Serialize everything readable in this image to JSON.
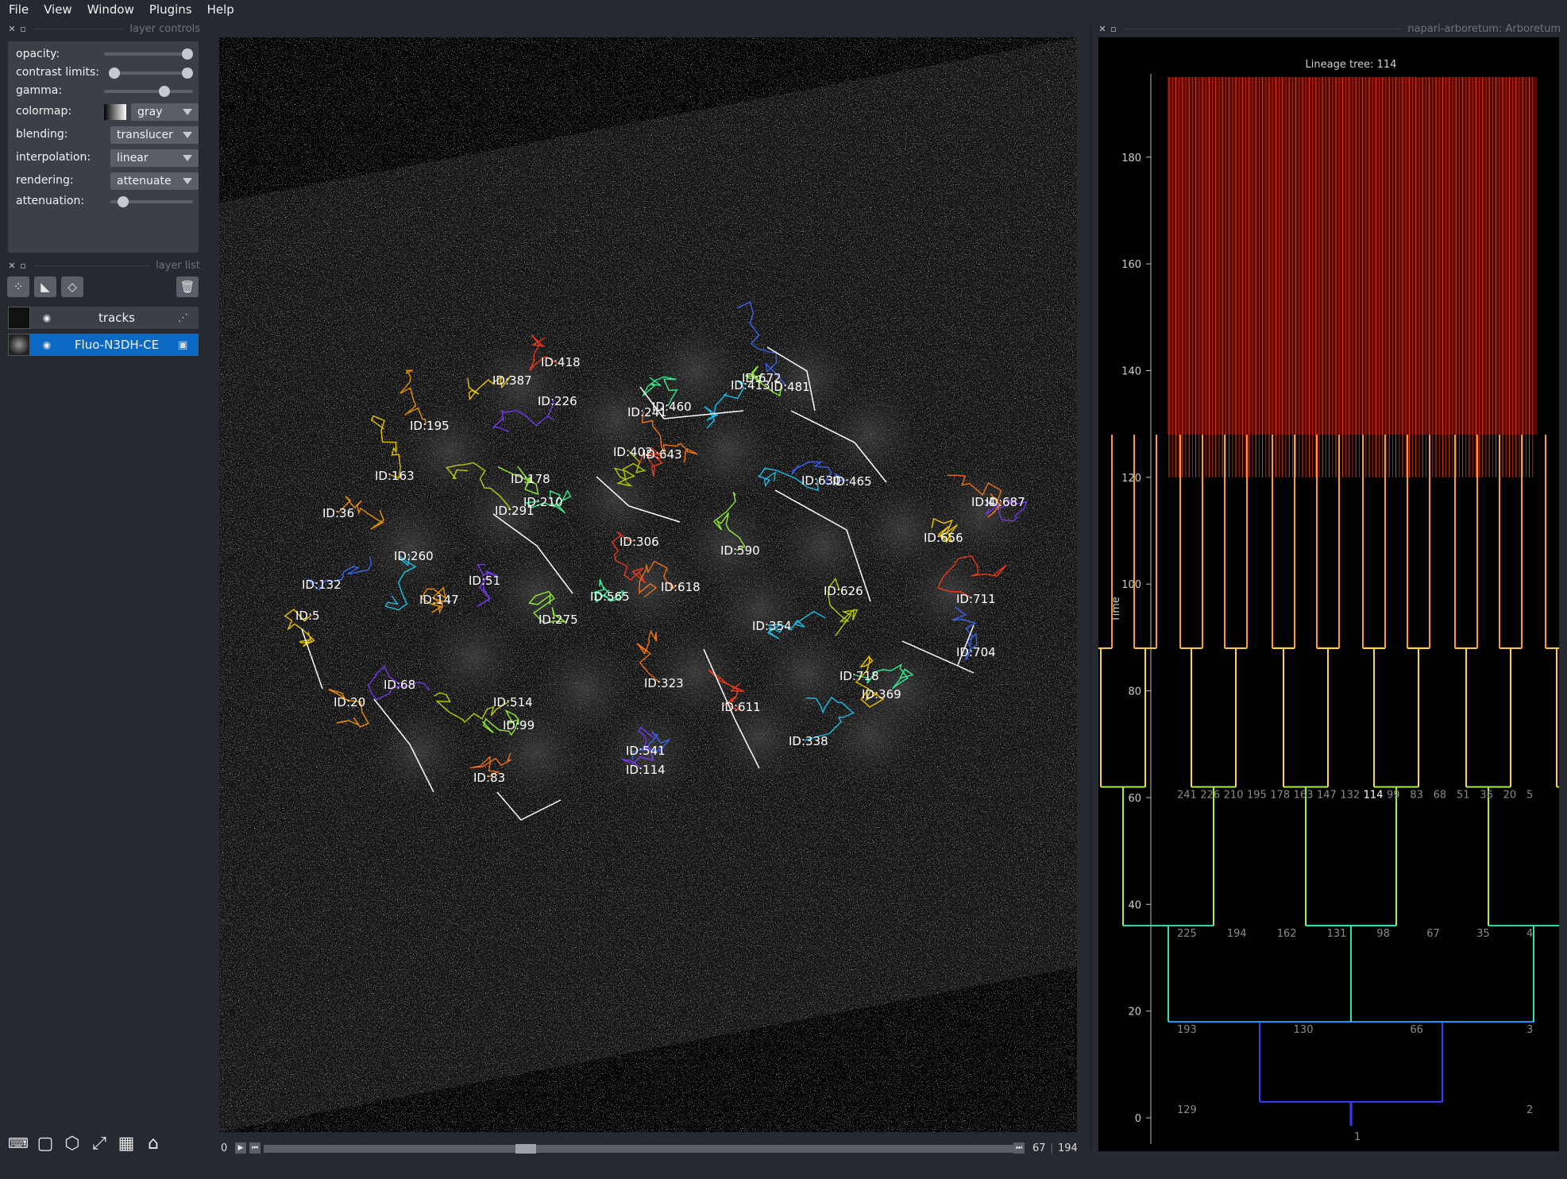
{
  "menu": [
    "File",
    "View",
    "Window",
    "Plugins",
    "Help"
  ],
  "layer_controls": {
    "header": "layer controls",
    "opacity_label": "opacity:",
    "opacity_value": 1.0,
    "contrast_label": "contrast limits:",
    "contrast_values": [
      0.0,
      1.0
    ],
    "gamma_label": "gamma:",
    "gamma_value": 0.7,
    "colormap_label": "colormap:",
    "colormap_value": "gray",
    "blending_label": "blending:",
    "blending_value": "translucer",
    "interpolation_label": "interpolation:",
    "interpolation_value": "linear",
    "rendering_label": "rendering:",
    "rendering_value": "attenuate",
    "attenuation_label": "attenuation:",
    "attenuation_value": 0.1
  },
  "layer_list": {
    "header": "layer list",
    "layers": [
      {
        "name": "tracks",
        "selected": false
      },
      {
        "name": "Fluo-N3DH-CE",
        "selected": true
      }
    ]
  },
  "frame_slider": {
    "start": "0",
    "current": "67",
    "total": "194",
    "position": 0.345
  },
  "tracks": {
    "labels": [
      {
        "text": "ID:418",
        "c": "#ffffff"
      },
      {
        "text": "ID:387",
        "c": "#ffffff"
      },
      {
        "text": "ID:672",
        "c": "#ffffff"
      },
      {
        "text": "ID:413",
        "c": "#ffffff"
      },
      {
        "text": "ID:481",
        "c": "#ffffff"
      },
      {
        "text": "ID:226",
        "c": "#ffffff"
      },
      {
        "text": "ID:241",
        "c": "#ffffff"
      },
      {
        "text": "ID:460",
        "c": "#ffffff"
      },
      {
        "text": "ID:195",
        "c": "#ffffff"
      },
      {
        "text": "ID:402",
        "c": "#ffffff"
      },
      {
        "text": "ID:643",
        "c": "#ffffff"
      },
      {
        "text": "ID:163",
        "c": "#ffffff"
      },
      {
        "text": "ID:178",
        "c": "#ffffff"
      },
      {
        "text": "ID:630",
        "c": "#ffffff"
      },
      {
        "text": "ID:465",
        "c": "#ffffff"
      },
      {
        "text": "ID:4",
        "c": "#ffffff"
      },
      {
        "text": "ID:687",
        "c": "#ffffff"
      },
      {
        "text": "ID:210",
        "c": "#ffffff"
      },
      {
        "text": "ID:36",
        "c": "#ffffff"
      },
      {
        "text": "ID:291",
        "c": "#ffffff"
      },
      {
        "text": "ID:306",
        "c": "#ffffff"
      },
      {
        "text": "ID:656",
        "c": "#ffffff"
      },
      {
        "text": "ID:590",
        "c": "#ffffff"
      },
      {
        "text": "ID:260",
        "c": "#ffffff"
      },
      {
        "text": "ID:132",
        "c": "#ffffff"
      },
      {
        "text": "ID:51",
        "c": "#ffffff"
      },
      {
        "text": "ID:618",
        "c": "#ffffff"
      },
      {
        "text": "ID:565",
        "c": "#ffffff"
      },
      {
        "text": "ID:147",
        "c": "#ffffff"
      },
      {
        "text": "ID:626",
        "c": "#ffffff"
      },
      {
        "text": "ID:711",
        "c": "#ffffff"
      },
      {
        "text": "ID:5",
        "c": "#ffffff"
      },
      {
        "text": "ID:275",
        "c": "#ffffff"
      },
      {
        "text": "ID:354",
        "c": "#ffffff"
      },
      {
        "text": "ID:704",
        "c": "#ffffff"
      },
      {
        "text": "ID:68",
        "c": "#ffffff"
      },
      {
        "text": "ID:323",
        "c": "#ffffff"
      },
      {
        "text": "ID:718",
        "c": "#ffffff"
      },
      {
        "text": "ID:20",
        "c": "#ffffff"
      },
      {
        "text": "ID:514",
        "c": "#ffffff"
      },
      {
        "text": "ID:611",
        "c": "#ffffff"
      },
      {
        "text": "ID:369",
        "c": "#ffffff"
      },
      {
        "text": "ID:99",
        "c": "#ffffff"
      },
      {
        "text": "ID:338",
        "c": "#ffffff"
      },
      {
        "text": "ID:541",
        "c": "#ffffff"
      },
      {
        "text": "ID:114",
        "c": "#ffffff"
      },
      {
        "text": "ID:83",
        "c": "#ffffff"
      }
    ]
  },
  "arboretum": {
    "header": "napari-arboretum: Arboretum",
    "chart_data": {
      "type": "tree",
      "title": "Lineage tree: 114",
      "ylabel": "Time",
      "ylim": [
        0,
        195
      ],
      "yticks": [
        0,
        20,
        40,
        60,
        80,
        100,
        120,
        140,
        160,
        180
      ],
      "root": "1",
      "level_labels": [
        {
          "t": 3,
          "labels": [
            "129",
            "2"
          ]
        },
        {
          "t": 18,
          "labels": [
            "193",
            "130",
            "66",
            "3"
          ]
        },
        {
          "t": 36,
          "labels": [
            "225",
            "194",
            "162",
            "131",
            "98",
            "67",
            "35",
            "4"
          ]
        },
        {
          "t": 62,
          "labels": [
            "241",
            "226",
            "210",
            "195",
            "178",
            "163",
            "147",
            "132",
            "114",
            "99",
            "83",
            "68",
            "51",
            "36",
            "20",
            "5"
          ]
        }
      ],
      "highlighted_node": "114"
    }
  }
}
